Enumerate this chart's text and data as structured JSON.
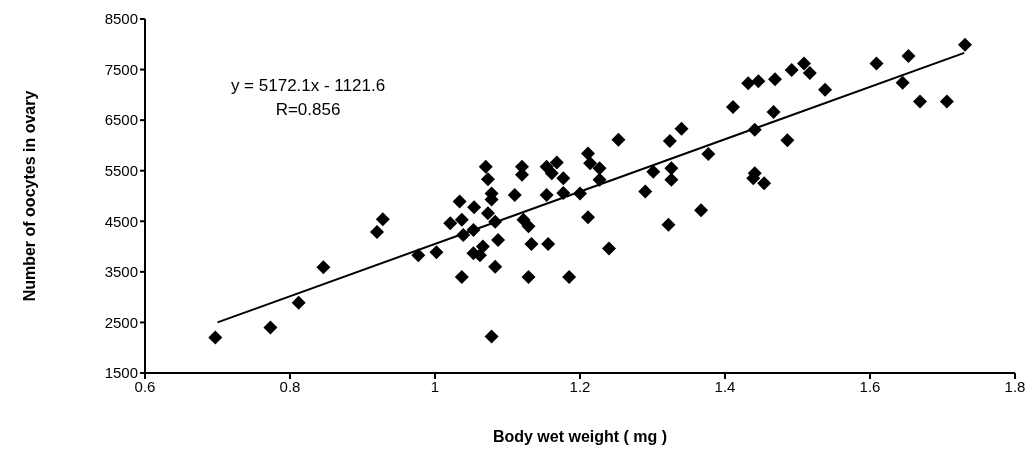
{
  "chart_data": {
    "type": "scatter",
    "xlabel": "Body wet weight ( mg )",
    "ylabel": "Number of oocytes in ovary",
    "xlim": [
      0.6,
      1.8
    ],
    "xticks": [
      0.6,
      0.8,
      1,
      1.2,
      1.4,
      1.6,
      {
        "value": 1.8,
        "label": "1.8"
      }
    ],
    "ylim": [
      1500,
      8500
    ],
    "yticks": [
      1500,
      2500,
      3500,
      4500,
      5500,
      6500,
      7500,
      8500
    ],
    "annotations": [
      "y = 5172.1x - 1121.6",
      "R=0.856"
    ],
    "series": [
      {
        "color": "#000000",
        "marker": "diamond",
        "x": [
          0.697,
          0.773,
          0.812,
          0.846,
          0.92,
          0.928,
          0.977,
          1.002,
          1.07,
          1.073,
          1.078,
          1.078,
          1.034,
          1.054,
          1.021,
          1.037,
          1.039,
          1.053,
          1.073,
          1.083,
          1.053,
          1.062,
          1.066,
          1.087,
          1.083,
          1.037,
          1.078,
          1.11,
          1.12,
          1.12,
          1.122,
          1.129,
          1.133,
          1.129,
          1.154,
          1.161,
          1.168,
          1.177,
          1.154,
          1.177,
          1.156,
          1.185,
          1.2,
          1.211,
          1.214,
          1.227,
          1.227,
          1.211,
          1.24,
          1.253,
          1.301,
          1.29,
          1.322,
          1.326,
          1.326,
          1.324,
          1.34,
          1.367,
          1.377,
          1.411,
          1.432,
          1.446,
          1.469,
          1.441,
          1.467,
          1.486,
          1.492,
          1.509,
          1.517,
          1.538,
          1.441,
          1.439,
          1.454,
          1.609,
          1.645,
          1.653,
          1.669,
          1.706,
          1.731
        ],
        "values": [
          2200,
          2400,
          2890,
          3590,
          4290,
          4540,
          3830,
          3890,
          5580,
          5330,
          5050,
          4930,
          4890,
          4780,
          4460,
          4530,
          4230,
          4330,
          4660,
          4490,
          3870,
          3830,
          4000,
          4130,
          3600,
          3400,
          2220,
          5020,
          5580,
          5420,
          4530,
          4400,
          4050,
          3400,
          5580,
          5450,
          5660,
          5350,
          5020,
          5060,
          4050,
          3400,
          5050,
          5840,
          5650,
          5550,
          5320,
          4580,
          3960,
          6110,
          5480,
          5090,
          4430,
          5550,
          5320,
          6090,
          6330,
          4720,
          5830,
          6760,
          7230,
          7270,
          7310,
          6310,
          6660,
          6100,
          7490,
          7620,
          7430,
          7100,
          5450,
          5350,
          5250,
          7620,
          7240,
          7770,
          6870,
          6870,
          7990
        ]
      },
      {
        "type": "line",
        "color": "#000000",
        "marker": "none",
        "line_style": "solid",
        "x": [
          0.7,
          1.73
        ],
        "values": [
          2500,
          7830
        ]
      }
    ]
  }
}
